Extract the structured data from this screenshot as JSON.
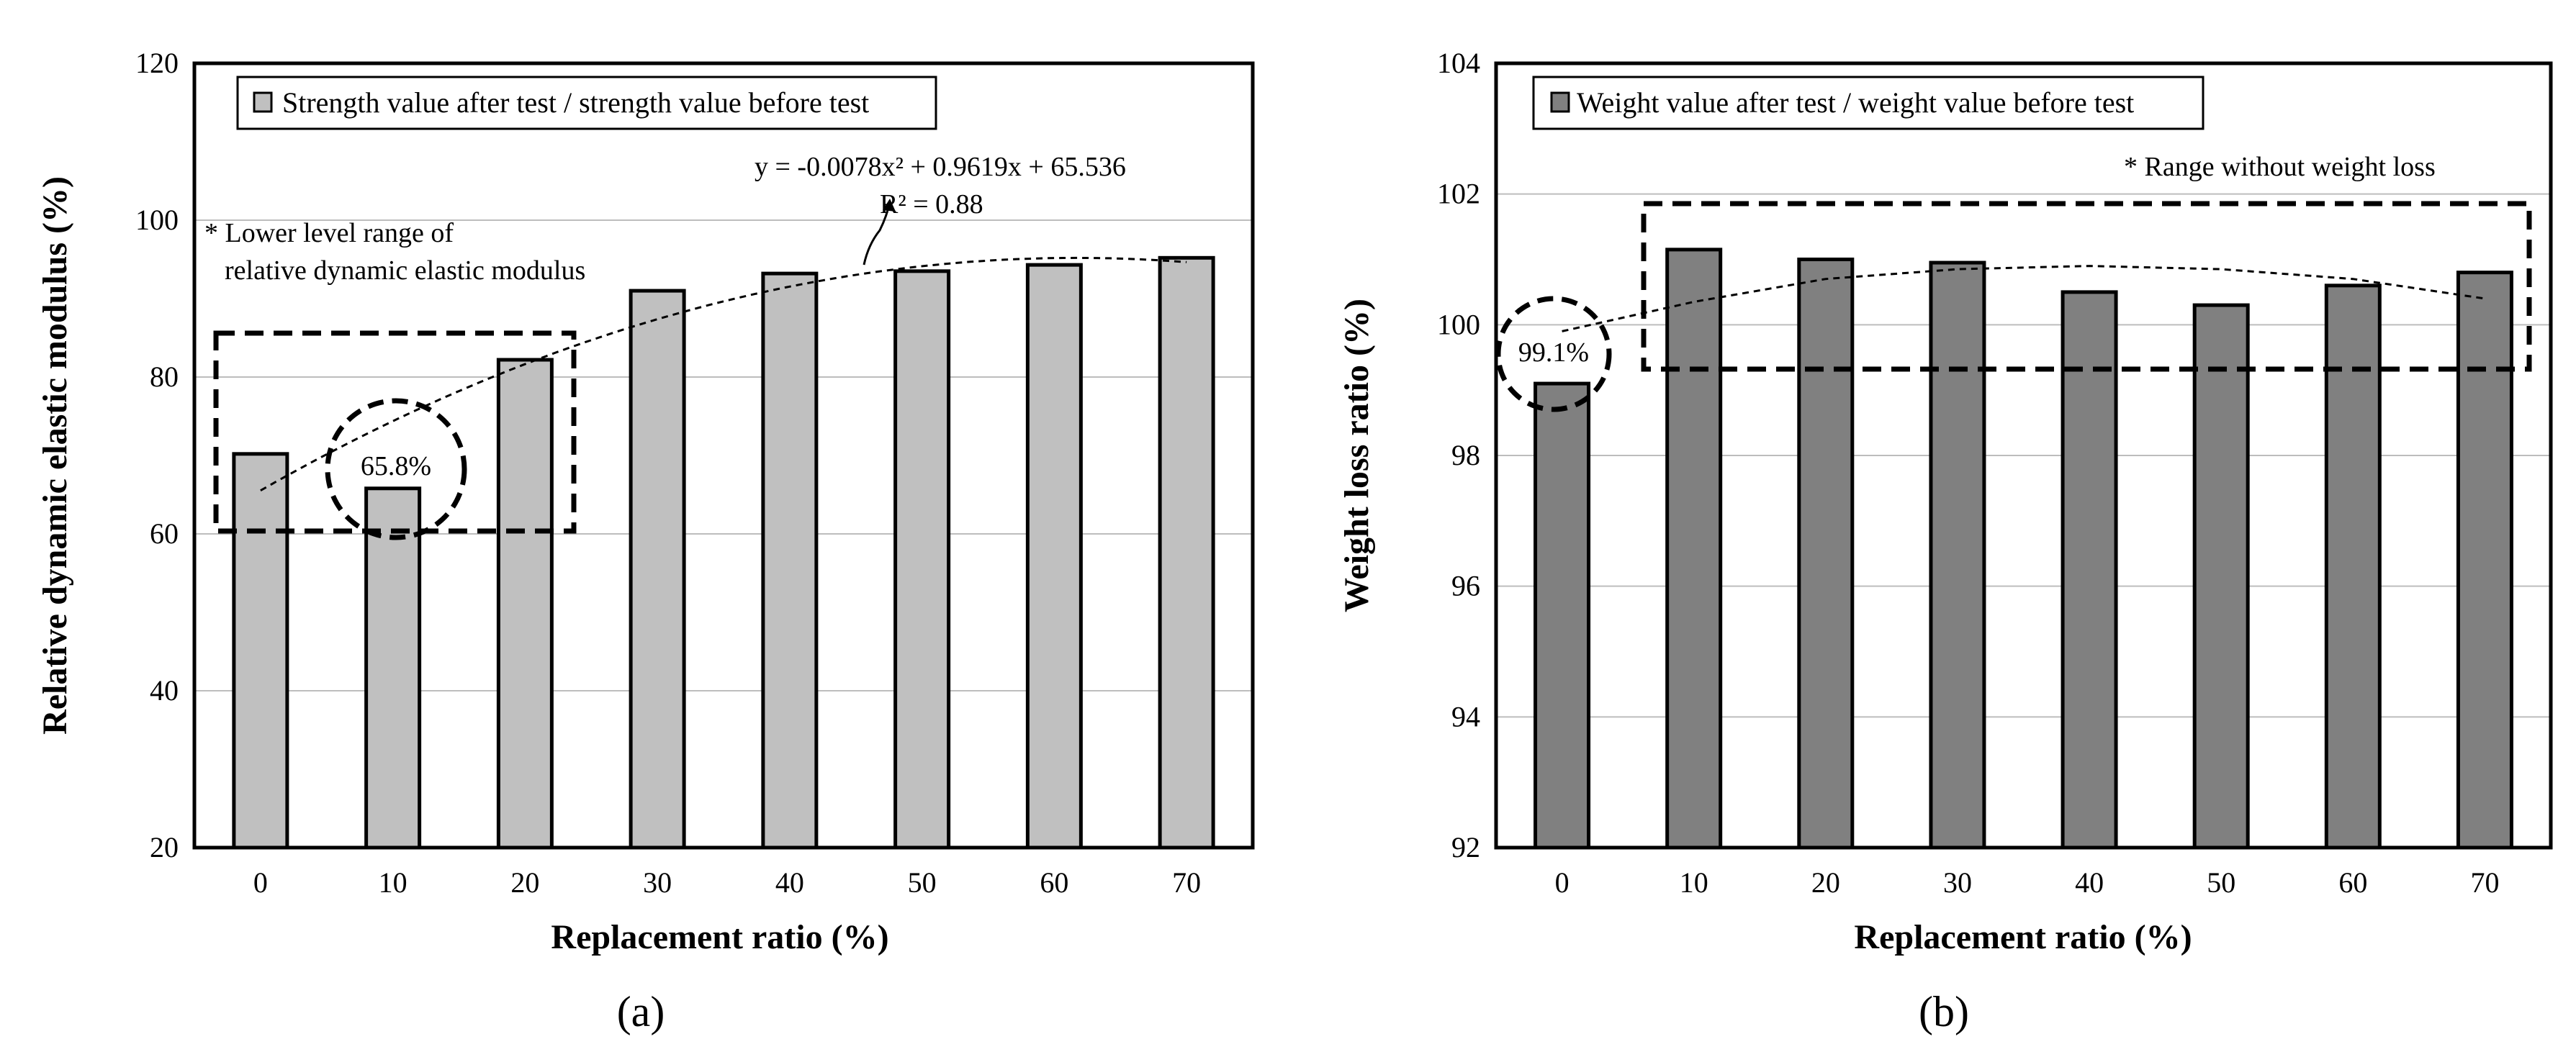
{
  "chart_data": [
    {
      "type": "bar",
      "panel_label": "(a)",
      "categories": [
        "0",
        "10",
        "20",
        "30",
        "40",
        "50",
        "60",
        "70"
      ],
      "series": [
        {
          "name": "Strength value after test / strength value before test",
          "values": [
            70.2,
            65.8,
            82.2,
            91.0,
            93.2,
            93.5,
            94.3,
            95.2
          ],
          "color": "#c0c0c0"
        }
      ],
      "xlabel": "Replacement ratio (%)",
      "ylabel": "Relative dynamic elastic modulus (%)",
      "ylim": [
        20,
        120
      ],
      "yticks": [
        "20",
        "40",
        "60",
        "80",
        "100",
        "120"
      ],
      "grid": true,
      "legend": "top-left",
      "trendline": {
        "type": "polynomial",
        "a": -0.0078,
        "b": 0.9619,
        "c": 65.536
      },
      "annotations": {
        "equation": "y = -0.0078x² + 0.9619x + 65.536",
        "r2": "R² = 0.88",
        "range_note_line1": "* Lower level range of",
        "range_note_line2": "relative  dynamic  elastic  modulus",
        "circle_label": "65.8%"
      }
    },
    {
      "type": "bar",
      "panel_label": "(b)",
      "categories": [
        "0",
        "10",
        "20",
        "30",
        "40",
        "50",
        "60",
        "70"
      ],
      "series": [
        {
          "name": "Weight value after test / weight value before test",
          "values": [
            99.1,
            101.15,
            101.0,
            100.95,
            100.5,
            100.3,
            100.6,
            100.8
          ],
          "color": "#808080"
        }
      ],
      "xlabel": "Replacement ratio (%)",
      "ylabel": "Weight loss ratio (%)",
      "ylim": [
        92,
        104
      ],
      "yticks": [
        "92",
        "94",
        "96",
        "98",
        "100",
        "102",
        "104"
      ],
      "grid": true,
      "legend": "top-left",
      "trendline": {
        "type": "curve",
        "points": [
          99.9,
          100.35,
          100.7,
          100.85,
          100.9,
          100.85,
          100.7,
          100.4
        ]
      },
      "annotations": {
        "range_note": "* Range without  weight loss",
        "circle_label": "99.1%"
      }
    }
  ]
}
